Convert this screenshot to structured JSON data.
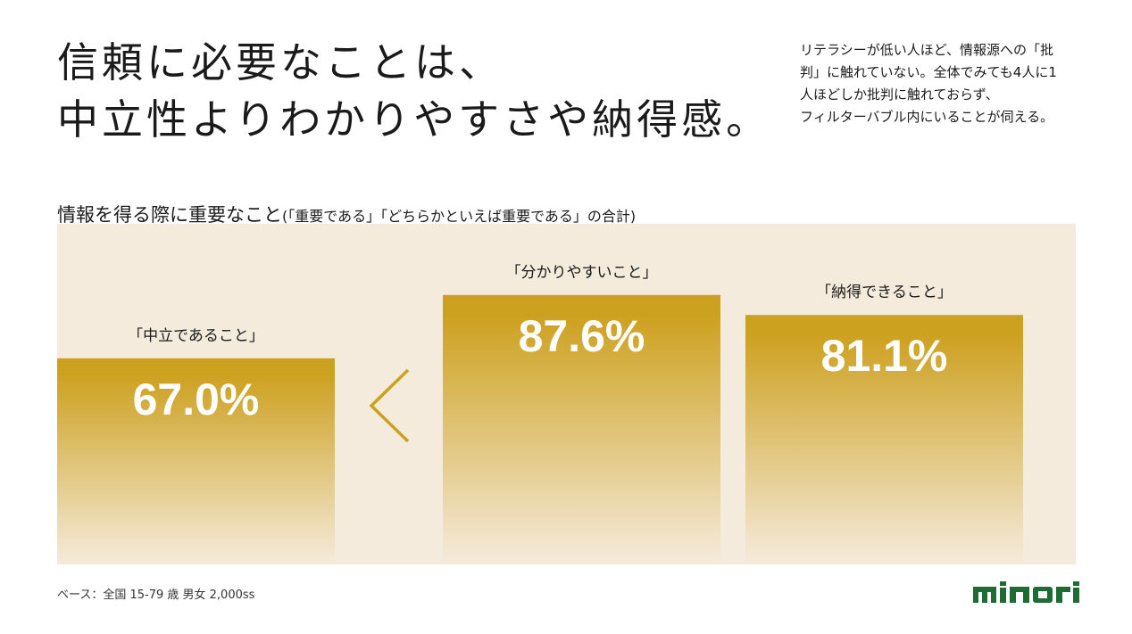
{
  "headline": {
    "line1": "信頼に必要なことは、",
    "line2": "中立性よりわかりやすさや納得感。"
  },
  "note": {
    "line1": "リテラシーが低い人ほど、情報源への「批",
    "line2": "判」に触れていない。全体でみても4人に1",
    "line3": "人ほどしか批判に触れておらず、",
    "line4": "フィルターバブル内にいることが伺える。"
  },
  "chart_title": {
    "main": "情報を得る際に重要なこと",
    "sub": "(「重要である」「どちらかといえば重要である」の合計)"
  },
  "base_note": "ベース：全国 15-79 歳 男女 2,000ss",
  "logo_text": "minori",
  "comparison_symbol": "<",
  "colors": {
    "bar_top": "#cda120",
    "bar_bottom": "#f5ebdc",
    "panel": "#f5ebdc",
    "value_text": "#ffffff",
    "logo": "#1f6b34"
  },
  "chart_data": {
    "type": "bar",
    "categories": [
      "「中立であること」",
      "「分かりやすいこと」",
      "「納得できること」"
    ],
    "values": [
      67.0,
      87.6,
      81.1
    ],
    "value_labels": [
      "67.0%",
      "87.6%",
      "81.1%"
    ],
    "unit": "%",
    "title": "情報を得る際に重要なこと",
    "xlabel": "",
    "ylabel": "",
    "grid": false,
    "legend": "none"
  }
}
